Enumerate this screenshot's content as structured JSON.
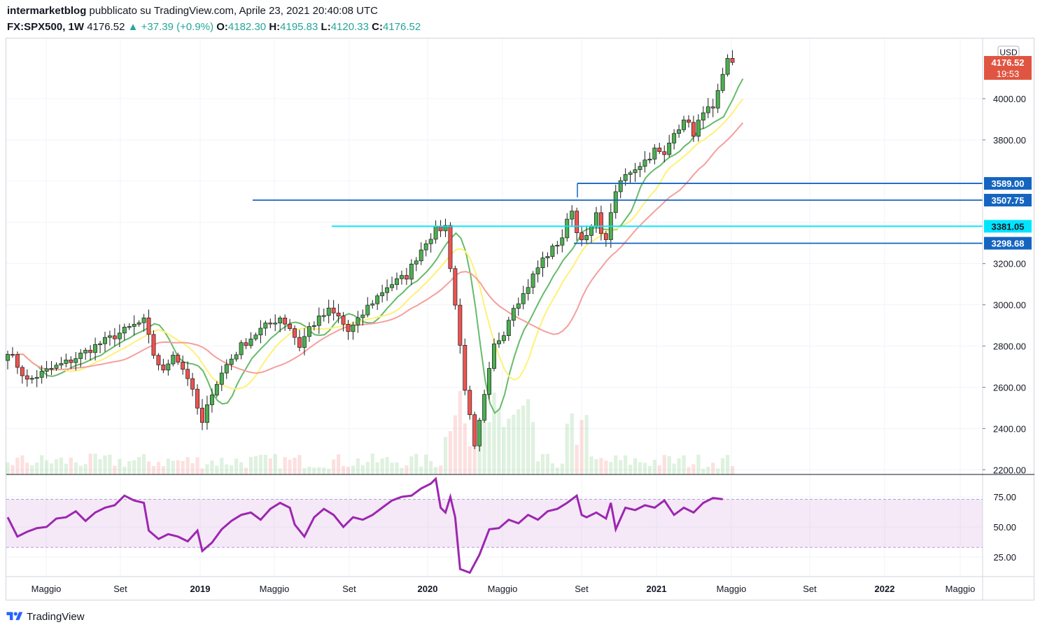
{
  "header": {
    "author": "intermarketblog",
    "published_text": "pubblicato su TradingView.com, Aprile 23, 2021 20:40:08 UTC",
    "symbol": "FX:SPX500, 1W",
    "last": "4176.52",
    "change": "+37.39 (+0.9%)",
    "o_label": "O:",
    "o_value": "4182.30",
    "h_label": "H:",
    "h_value": "4195.83",
    "l_label": "L:",
    "l_value": "4120.33",
    "c_label": "C:",
    "c_value": "4176.52"
  },
  "branding": {
    "name": "TradingView"
  },
  "colors": {
    "up": "#4caf50",
    "down": "#ef5350",
    "ma_fast": "#66bb6a",
    "ma_mid": "#fff176",
    "ma_slow": "#f4a09c",
    "rsi": "#9c27b0",
    "level_blue": "#1565c0",
    "level_cyan": "#00e5ff"
  },
  "chart_data": [
    {
      "type": "candlestick",
      "currency": "USD",
      "price_axis": {
        "ticks": [
          "4000.00",
          "3800.00",
          "3200.00",
          "3000.00",
          "2800.00",
          "2600.00",
          "2400.00",
          "2200.00"
        ],
        "ylim": [
          2080,
          4290
        ]
      },
      "time_axis_labels": [
        "Maggio",
        "Set",
        "2019",
        "Maggio",
        "Set",
        "2020",
        "Maggio",
        "Set",
        "2021",
        "Maggio",
        "Set",
        "2022",
        "Maggio"
      ],
      "last_price_label": "4176.52",
      "countdown_label": "19:53",
      "horizontal_levels": [
        {
          "value": 3589.0,
          "label": "3589.00",
          "color": "#1565c0"
        },
        {
          "value": 3507.75,
          "label": "3507.75",
          "color": "#1565c0"
        },
        {
          "value": 3381.05,
          "label": "3381.05",
          "color": "#00e5ff"
        },
        {
          "value": 3298.68,
          "label": "3298.68",
          "color": "#1565c0"
        }
      ],
      "close_path_weekly": [
        [
          0,
          2780
        ],
        [
          4,
          2630
        ],
        [
          8,
          2680
        ],
        [
          13,
          2730
        ],
        [
          18,
          2800
        ],
        [
          22,
          2850
        ],
        [
          26,
          2900
        ],
        [
          28,
          2920
        ],
        [
          30,
          2760
        ],
        [
          32,
          2670
        ],
        [
          34,
          2770
        ],
        [
          37,
          2650
        ],
        [
          40,
          2420
        ],
        [
          42,
          2580
        ],
        [
          45,
          2710
        ],
        [
          48,
          2800
        ],
        [
          52,
          2880
        ],
        [
          56,
          2940
        ],
        [
          58,
          2890
        ],
        [
          60,
          2800
        ],
        [
          62,
          2890
        ],
        [
          66,
          2970
        ],
        [
          68,
          2940
        ],
        [
          70,
          2870
        ],
        [
          72,
          2920
        ],
        [
          74,
          2990
        ],
        [
          78,
          3090
        ],
        [
          82,
          3140
        ],
        [
          84,
          3230
        ],
        [
          86,
          3310
        ],
        [
          88,
          3360
        ],
        [
          90,
          3380
        ],
        [
          92,
          3000
        ],
        [
          94,
          2600
        ],
        [
          96,
          2300
        ],
        [
          98,
          2550
        ],
        [
          100,
          2800
        ],
        [
          102,
          2870
        ],
        [
          104,
          3000
        ],
        [
          106,
          3050
        ],
        [
          108,
          3140
        ],
        [
          110,
          3220
        ],
        [
          112,
          3270
        ],
        [
          114,
          3330
        ],
        [
          116,
          3470
        ],
        [
          117,
          3350
        ],
        [
          119,
          3320
        ],
        [
          121,
          3430
        ],
        [
          123,
          3300
        ],
        [
          124,
          3460
        ],
        [
          126,
          3600
        ],
        [
          128,
          3650
        ],
        [
          131,
          3700
        ],
        [
          133,
          3750
        ],
        [
          135,
          3720
        ],
        [
          137,
          3850
        ],
        [
          139,
          3880
        ],
        [
          140,
          3900
        ],
        [
          141,
          3810
        ],
        [
          143,
          3950
        ],
        [
          145,
          3940
        ],
        [
          147,
          4100
        ],
        [
          148,
          4185
        ],
        [
          149,
          4176
        ]
      ],
      "volume_note": "volume histogram along bottom of price pane"
    },
    {
      "type": "line",
      "name": "",
      "y_ticks": [
        "75.00",
        "50.00",
        "25.00"
      ],
      "ylim": [
        10,
        92
      ],
      "band": [
        33,
        73
      ],
      "values_weekly": [
        [
          0,
          58
        ],
        [
          2,
          42
        ],
        [
          4,
          46
        ],
        [
          6,
          49
        ],
        [
          8,
          50
        ],
        [
          10,
          57
        ],
        [
          12,
          58
        ],
        [
          14,
          63
        ],
        [
          16,
          55
        ],
        [
          18,
          62
        ],
        [
          20,
          66
        ],
        [
          22,
          68
        ],
        [
          24,
          76
        ],
        [
          26,
          72
        ],
        [
          28,
          70
        ],
        [
          29,
          47
        ],
        [
          31,
          40
        ],
        [
          33,
          44
        ],
        [
          35,
          42
        ],
        [
          37,
          38
        ],
        [
          39,
          47
        ],
        [
          40,
          30
        ],
        [
          42,
          37
        ],
        [
          44,
          48
        ],
        [
          46,
          55
        ],
        [
          48,
          60
        ],
        [
          50,
          62
        ],
        [
          52,
          56
        ],
        [
          54,
          65
        ],
        [
          56,
          70
        ],
        [
          58,
          66
        ],
        [
          59,
          52
        ],
        [
          61,
          42
        ],
        [
          63,
          58
        ],
        [
          65,
          65
        ],
        [
          67,
          60
        ],
        [
          69,
          50
        ],
        [
          71,
          58
        ],
        [
          73,
          56
        ],
        [
          75,
          60
        ],
        [
          77,
          66
        ],
        [
          79,
          72
        ],
        [
          81,
          75
        ],
        [
          83,
          76
        ],
        [
          85,
          82
        ],
        [
          87,
          86
        ],
        [
          88,
          90
        ],
        [
          89,
          66
        ],
        [
          90,
          62
        ],
        [
          91,
          75
        ],
        [
          92,
          58
        ],
        [
          93,
          15
        ],
        [
          95,
          12
        ],
        [
          97,
          27
        ],
        [
          99,
          48
        ],
        [
          101,
          49
        ],
        [
          103,
          56
        ],
        [
          105,
          53
        ],
        [
          107,
          60
        ],
        [
          109,
          56
        ],
        [
          111,
          63
        ],
        [
          113,
          65
        ],
        [
          115,
          70
        ],
        [
          117,
          76
        ],
        [
          118,
          60
        ],
        [
          119,
          58
        ],
        [
          121,
          62
        ],
        [
          123,
          57
        ],
        [
          124,
          70
        ],
        [
          125,
          48
        ],
        [
          127,
          66
        ],
        [
          129,
          64
        ],
        [
          131,
          68
        ],
        [
          133,
          66
        ],
        [
          135,
          72
        ],
        [
          137,
          60
        ],
        [
          139,
          66
        ],
        [
          141,
          62
        ],
        [
          143,
          70
        ],
        [
          145,
          74
        ],
        [
          147,
          73
        ]
      ]
    }
  ]
}
